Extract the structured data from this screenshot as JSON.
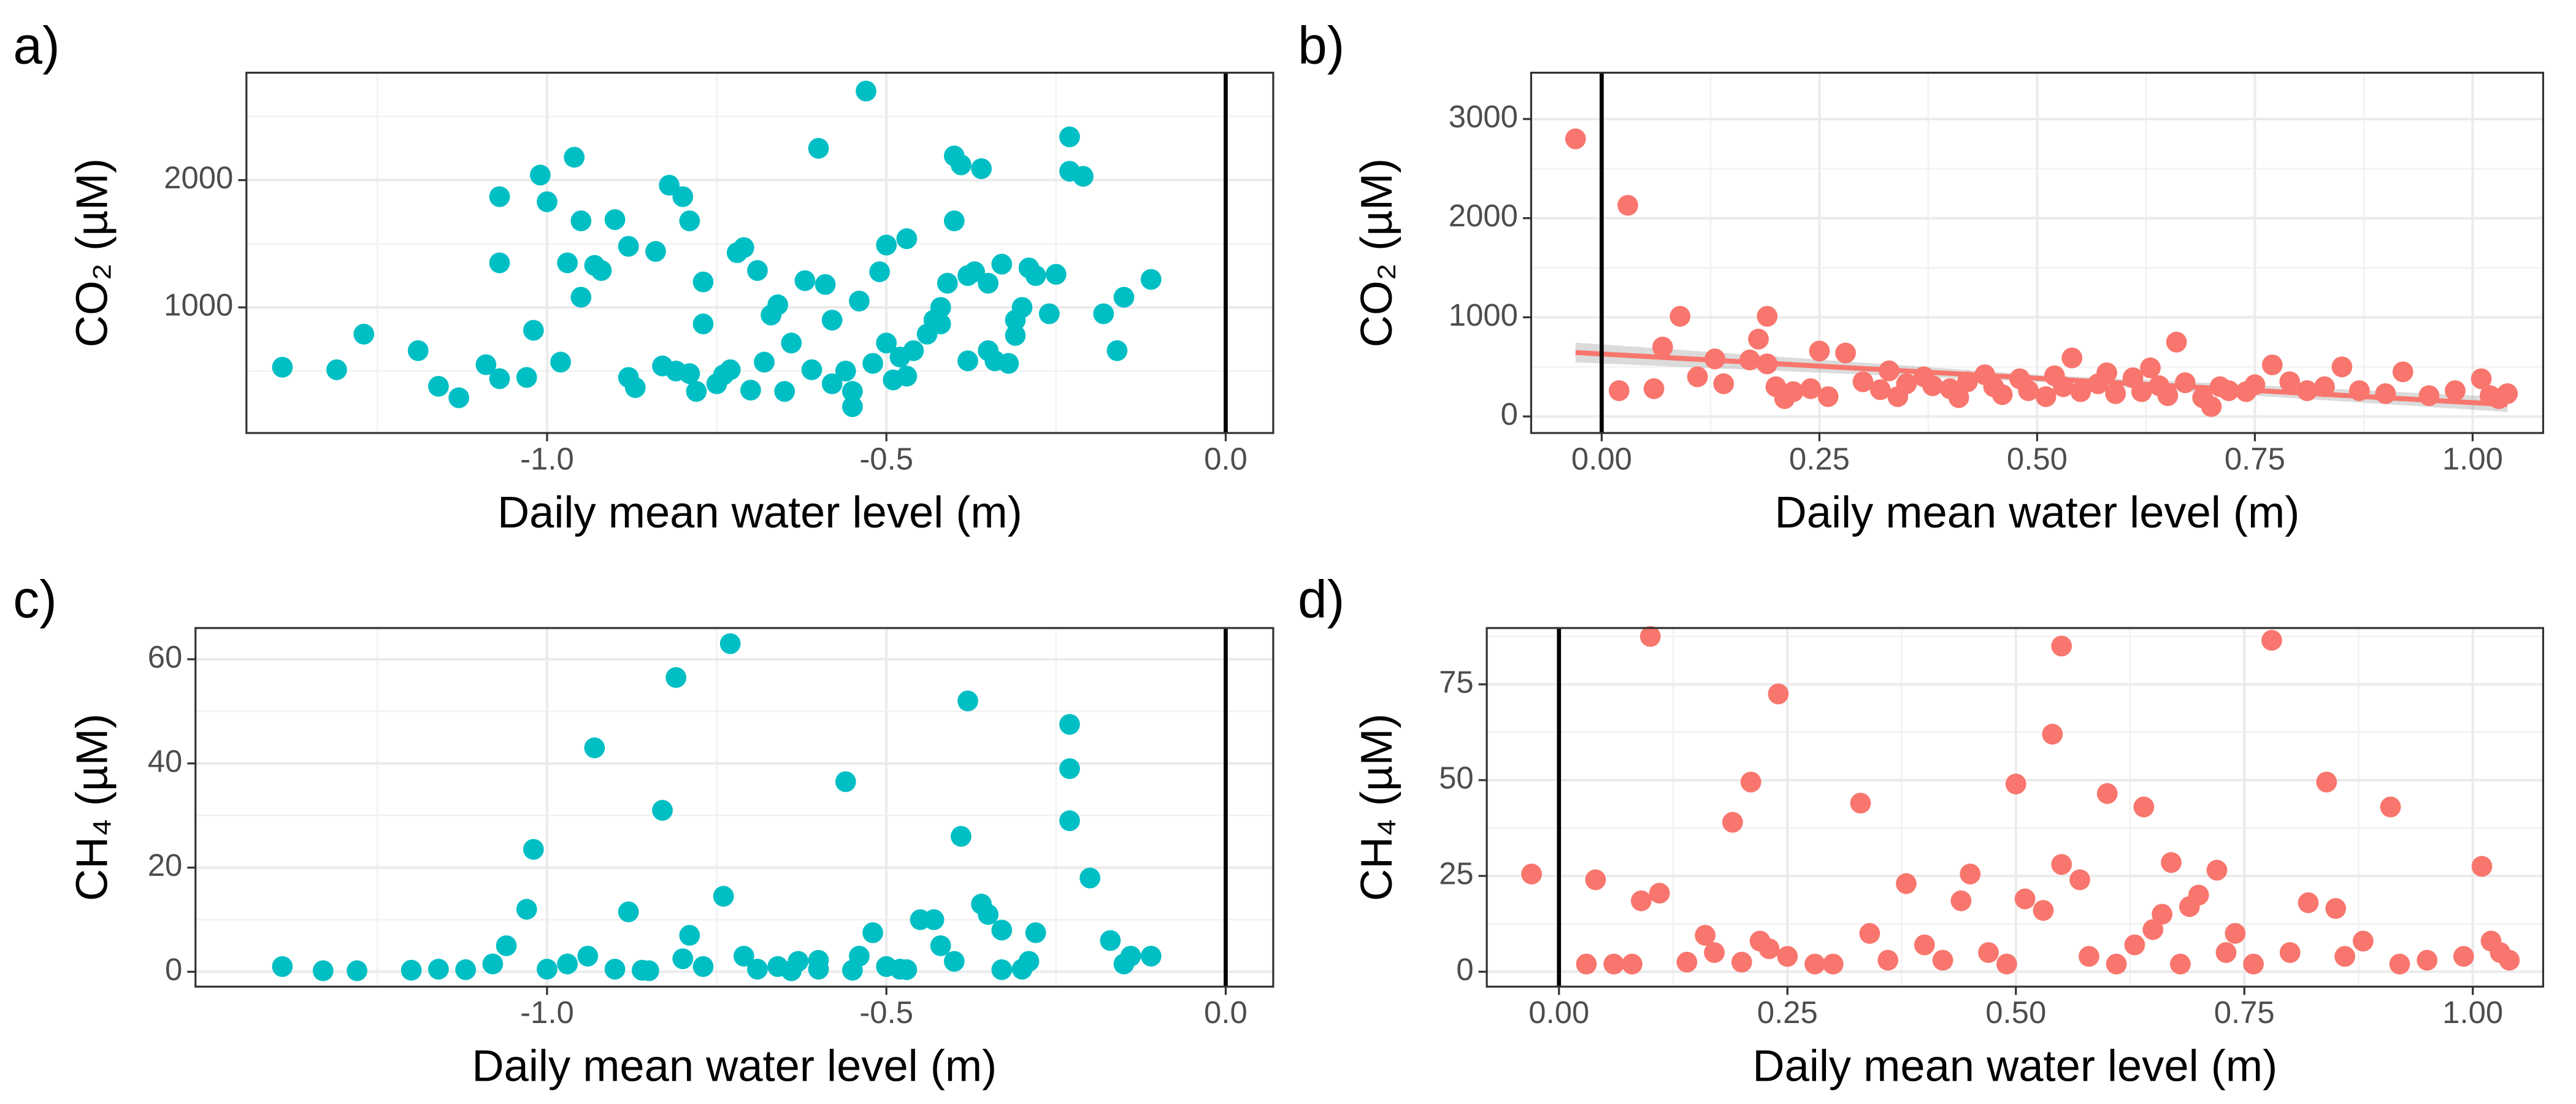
{
  "chart_data": [
    {
      "type": "scatter",
      "label": "a)",
      "xlabel": "Daily mean water level (m)",
      "ylabel": "CO₂ (µM)",
      "color": "#00bfc4",
      "vline": 0,
      "grid": true,
      "xlim": [
        -1.443,
        0.07
      ],
      "ylim": [
        13,
        2844
      ],
      "xticks": [
        {
          "value": -1,
          "label": "-1.0"
        },
        {
          "value": -0.5,
          "label": "-0.5"
        },
        {
          "value": 0,
          "label": "0.0"
        }
      ],
      "yticks": [
        1000,
        2000
      ],
      "x": [
        -1.39,
        -1.31,
        -1.27,
        -1.19,
        -1.16,
        -1.13,
        -1.09,
        -1.07,
        -1.07,
        -1.07,
        -1.03,
        -1.02,
        -1.01,
        -1.0,
        -0.98,
        -0.97,
        -0.96,
        -0.95,
        -0.95,
        -0.93,
        -0.92,
        -0.9,
        -0.88,
        -0.88,
        -0.87,
        -0.84,
        -0.83,
        -0.82,
        -0.81,
        -0.8,
        -0.79,
        -0.79,
        -0.78,
        -0.77,
        -0.77,
        -0.75,
        -0.74,
        -0.73,
        -0.72,
        -0.71,
        -0.7,
        -0.69,
        -0.68,
        -0.67,
        -0.66,
        -0.65,
        -0.64,
        -0.62,
        -0.61,
        -0.6,
        -0.59,
        -0.58,
        -0.58,
        -0.56,
        -0.55,
        -0.55,
        -0.54,
        -0.53,
        -0.52,
        -0.51,
        -0.5,
        -0.5,
        -0.49,
        -0.48,
        -0.47,
        -0.47,
        -0.46,
        -0.44,
        -0.43,
        -0.42,
        -0.42,
        -0.41,
        -0.4,
        -0.4,
        -0.39,
        -0.38,
        -0.38,
        -0.37,
        -0.36,
        -0.35,
        -0.35,
        -0.34,
        -0.33,
        -0.32,
        -0.31,
        -0.31,
        -0.3,
        -0.29,
        -0.28,
        -0.26,
        -0.25,
        -0.23,
        -0.23,
        -0.21,
        -0.18,
        -0.16,
        -0.15,
        -0.11
      ],
      "values": [
        530,
        510,
        790,
        660,
        380,
        290,
        550,
        1870,
        1350,
        440,
        450,
        820,
        2040,
        1830,
        570,
        1350,
        2180,
        1080,
        1680,
        1330,
        1290,
        1690,
        1480,
        450,
        370,
        1440,
        540,
        1960,
        500,
        1870,
        480,
        1680,
        340,
        870,
        1200,
        400,
        470,
        510,
        1430,
        1470,
        350,
        1290,
        570,
        940,
        1020,
        340,
        720,
        1210,
        510,
        2250,
        1180,
        900,
        400,
        500,
        340,
        220,
        1050,
        2700,
        560,
        1280,
        1490,
        720,
        430,
        610,
        1540,
        460,
        660,
        790,
        900,
        870,
        1000,
        1190,
        1680,
        2190,
        2120,
        1250,
        580,
        1280,
        2090,
        660,
        1190,
        580,
        1340,
        560,
        780,
        900,
        1000,
        1310,
        1250,
        950,
        1260,
        2340,
        2070,
        2030,
        950,
        660,
        1080,
        1220
      ]
    },
    {
      "type": "scatter",
      "label": "b)",
      "xlabel": "Daily mean water level (m)",
      "ylabel": "CO₂ (µM)",
      "color": "#f8766d",
      "vline": 0,
      "grid": true,
      "xlim": [
        -0.081,
        1.081
      ],
      "ylim": [
        -167,
        3467
      ],
      "xticks": [
        {
          "value": 0,
          "label": "0.00"
        },
        0.25,
        {
          "value": 0.5,
          "label": "0.50"
        },
        0.75,
        {
          "value": 1,
          "label": "1.00"
        }
      ],
      "yticks": [
        0,
        1000,
        2000,
        3000
      ],
      "x": [
        -0.03,
        0.03,
        0.02,
        0.06,
        0.07,
        0.09,
        0.11,
        0.13,
        0.14,
        0.17,
        0.18,
        0.19,
        0.19,
        0.2,
        0.21,
        0.22,
        0.24,
        0.25,
        0.26,
        0.28,
        0.3,
        0.32,
        0.33,
        0.34,
        0.35,
        0.37,
        0.38,
        0.4,
        0.41,
        0.42,
        0.44,
        0.45,
        0.46,
        0.48,
        0.49,
        0.51,
        0.52,
        0.53,
        0.54,
        0.55,
        0.57,
        0.58,
        0.59,
        0.61,
        0.62,
        0.63,
        0.64,
        0.65,
        0.66,
        0.67,
        0.69,
        0.7,
        0.71,
        0.72,
        0.74,
        0.75,
        0.77,
        0.79,
        0.81,
        0.83,
        0.85,
        0.87,
        0.9,
        0.92,
        0.95,
        0.98,
        1.01,
        1.02,
        1.03,
        1.04
      ],
      "values": [
        2800,
        2130,
        260,
        280,
        700,
        1010,
        400,
        580,
        330,
        570,
        780,
        1010,
        530,
        300,
        180,
        250,
        280,
        660,
        200,
        640,
        350,
        270,
        460,
        200,
        330,
        400,
        310,
        280,
        190,
        350,
        420,
        300,
        220,
        380,
        260,
        200,
        410,
        300,
        590,
        250,
        330,
        440,
        230,
        390,
        250,
        490,
        310,
        210,
        750,
        340,
        190,
        100,
        300,
        260,
        250,
        320,
        520,
        350,
        260,
        300,
        500,
        260,
        230,
        450,
        210,
        260,
        380,
        210,
        180,
        230
      ],
      "fit": {
        "x": [
          -0.03,
          0.5,
          1.04
        ],
        "values": [
          645,
          385,
          120
        ],
        "lower": [
          545,
          350,
          45
        ],
        "upper": [
          745,
          420,
          195
        ]
      }
    },
    {
      "type": "scatter",
      "label": "c)",
      "xlabel": "Daily mean water level (m)",
      "ylabel": "CH₄ (µM)",
      "color": "#00bfc4",
      "vline": 0,
      "grid": true,
      "xlim": [
        -1.518,
        0.07
      ],
      "ylim": [
        -2.86,
        66
      ],
      "xticks": [
        {
          "value": -1,
          "label": "-1.0"
        },
        {
          "value": -0.5,
          "label": "-0.5"
        },
        {
          "value": 0,
          "label": "0.0"
        }
      ],
      "yticks": [
        0,
        20,
        40,
        60
      ],
      "x": [
        -1.39,
        -1.33,
        -1.28,
        -1.2,
        -1.16,
        -1.12,
        -1.08,
        -1.06,
        -1.03,
        -1.02,
        -1.0,
        -0.97,
        -0.94,
        -0.93,
        -0.9,
        -0.88,
        -0.86,
        -0.83,
        -0.81,
        -0.8,
        -0.79,
        -0.77,
        -0.74,
        -0.73,
        -0.71,
        -0.69,
        -0.66,
        -0.63,
        -0.6,
        -0.56,
        -0.54,
        -0.52,
        -0.5,
        -0.47,
        -0.45,
        -0.43,
        -0.42,
        -0.4,
        -0.39,
        -0.38,
        -0.36,
        -0.35,
        -0.33,
        -0.3,
        -0.29,
        -0.28,
        -0.23,
        -0.23,
        -0.23,
        -0.2,
        -0.17,
        -0.15,
        -0.14,
        -0.11,
        -0.55,
        -0.6,
        -0.64,
        -0.85,
        -0.48,
        -0.33
      ],
      "values": [
        1,
        0.2,
        0.2,
        0.3,
        0.5,
        0.4,
        1.5,
        5,
        12,
        23.5,
        0.5,
        1.5,
        3,
        43,
        0.5,
        11.5,
        0.3,
        31,
        56.5,
        2.5,
        7,
        1,
        14.5,
        63,
        3,
        0.5,
        1,
        2,
        0.5,
        36.5,
        3,
        7.5,
        1,
        0.4,
        10,
        10,
        5,
        2,
        26,
        52,
        13,
        11,
        8,
        0.5,
        2,
        7.5,
        47.5,
        39,
        29,
        18,
        6,
        1.5,
        3,
        3,
        0.3,
        2.2,
        0.2,
        0.2,
        0.5,
        0.4
      ]
    },
    {
      "type": "scatter",
      "label": "d)",
      "xlabel": "Daily mean water level (m)",
      "ylabel": "CH₄ (µM)",
      "color": "#f8766d",
      "vline": 0,
      "grid": true,
      "xlim": [
        -0.079,
        1.077
      ],
      "ylim": [
        -3.9,
        89.7
      ],
      "xticks": [
        {
          "value": 0,
          "label": "0.00"
        },
        0.25,
        {
          "value": 0.5,
          "label": "0.50"
        },
        0.75,
        {
          "value": 1,
          "label": "1.00"
        }
      ],
      "yticks": [
        0,
        25,
        50,
        75
      ],
      "x": [
        -0.03,
        0.03,
        0.04,
        0.06,
        0.08,
        0.09,
        0.1,
        0.11,
        0.14,
        0.16,
        0.17,
        0.19,
        0.2,
        0.21,
        0.22,
        0.23,
        0.24,
        0.25,
        0.28,
        0.3,
        0.33,
        0.34,
        0.36,
        0.38,
        0.4,
        0.42,
        0.44,
        0.45,
        0.47,
        0.49,
        0.5,
        0.51,
        0.53,
        0.54,
        0.55,
        0.55,
        0.57,
        0.58,
        0.6,
        0.61,
        0.63,
        0.64,
        0.65,
        0.66,
        0.67,
        0.68,
        0.69,
        0.7,
        0.72,
        0.73,
        0.74,
        0.76,
        0.78,
        0.8,
        0.82,
        0.84,
        0.85,
        0.86,
        0.88,
        0.91,
        0.92,
        0.95,
        0.99,
        1.01,
        1.02,
        1.03,
        1.04
      ],
      "values": [
        25.5,
        2,
        24,
        2,
        2,
        18.5,
        87.5,
        20.5,
        2.5,
        9.5,
        5,
        39,
        2.5,
        49.5,
        8,
        6,
        72.5,
        4,
        2,
        2,
        44,
        10,
        3,
        23,
        7,
        3,
        18.5,
        25.5,
        5,
        2,
        49,
        19,
        16,
        62,
        85,
        28,
        24,
        4,
        46.5,
        2,
        7,
        43,
        11,
        15,
        28.5,
        2,
        17,
        20,
        26.5,
        5,
        10,
        2,
        86.5,
        5,
        18,
        49.5,
        16.5,
        4,
        8,
        43,
        2,
        3,
        4,
        27.5,
        8,
        5,
        3
      ]
    }
  ]
}
